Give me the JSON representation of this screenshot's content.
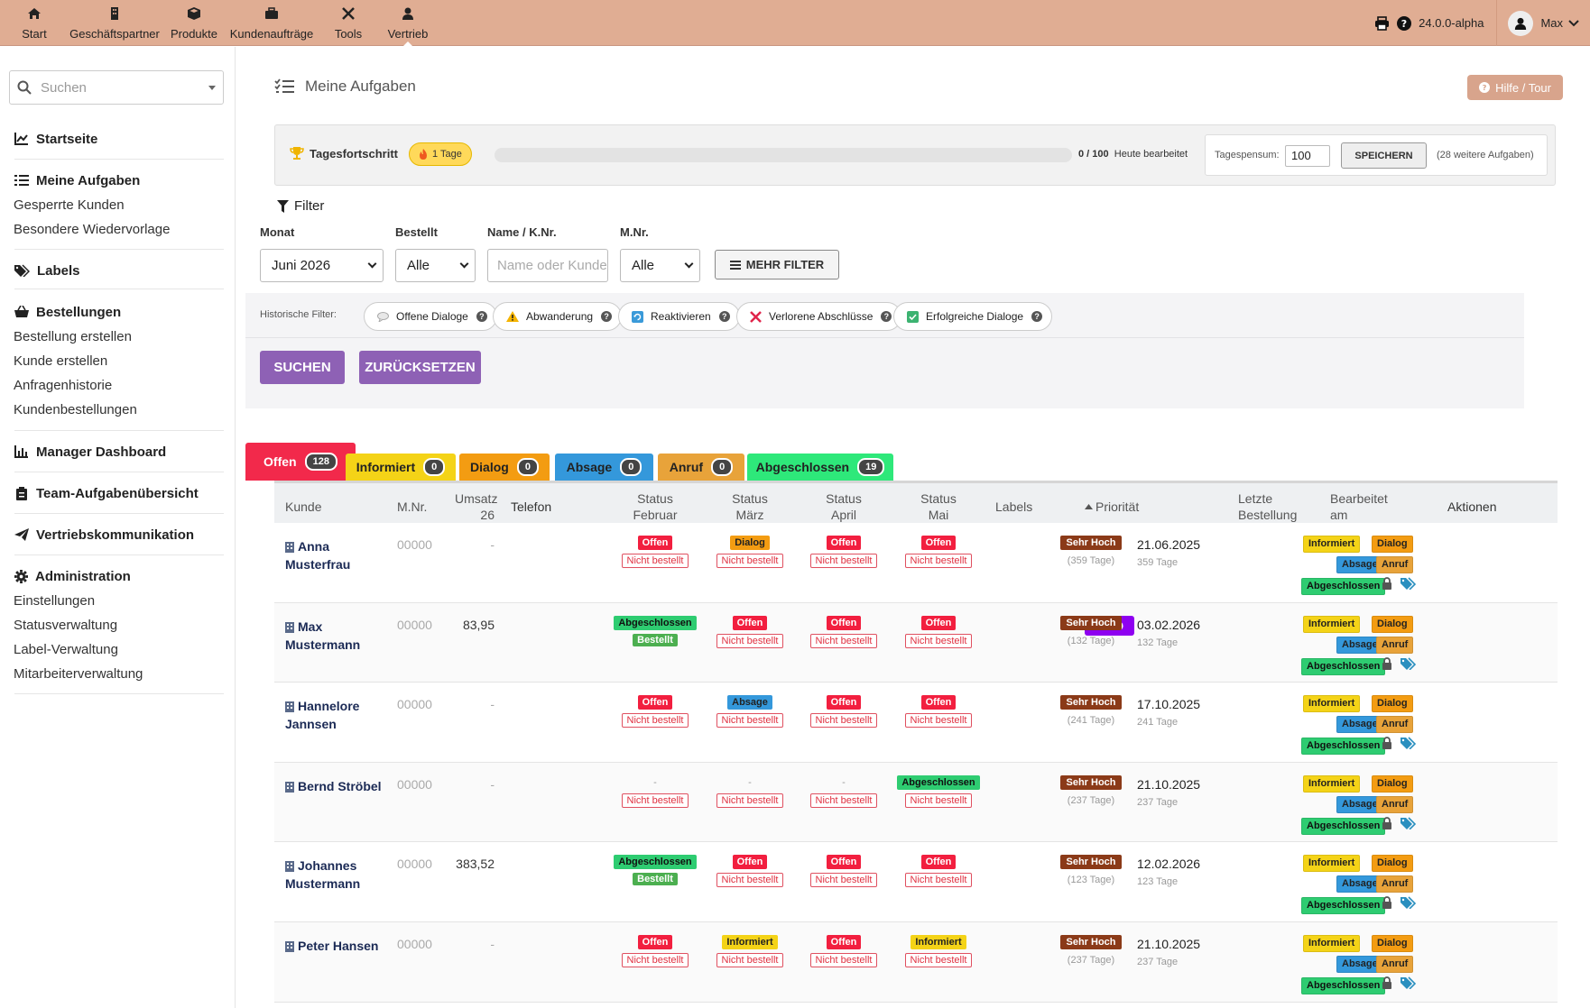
{
  "nav": {
    "items": [
      {
        "label": "Start",
        "icon": "home-icon"
      },
      {
        "label": "Geschäftspartner",
        "icon": "building-icon"
      },
      {
        "label": "Produkte",
        "icon": "cube-icon"
      },
      {
        "label": "Kundenaufträge",
        "icon": "briefcase-icon"
      },
      {
        "label": "Tools",
        "icon": "tools-icon"
      },
      {
        "label": "Vertrieb",
        "icon": "person-icon"
      }
    ],
    "version": "24.0.0-alpha",
    "user": "Max"
  },
  "sidebar": {
    "search_placeholder": "Suchen",
    "startseite": "Startseite",
    "meine_aufgaben": "Meine Aufgaben",
    "gesperrte_kunden": "Gesperrte Kunden",
    "besondere_wiedervorlage": "Besondere Wiedervorlage",
    "labels": "Labels",
    "bestellungen": "Bestellungen",
    "bestellung_erstellen": "Bestellung erstellen",
    "kunde_erstellen": "Kunde erstellen",
    "anfragenhistorie": "Anfragenhistorie",
    "kundenbestellungen": "Kundenbestellungen",
    "manager_dashboard": "Manager Dashboard",
    "team": "Team-Aufgabenübersicht",
    "vertriebskommunikation": "Vertriebskommunikation",
    "administration": "Administration",
    "einstellungen": "Einstellungen",
    "statusverwaltung": "Statusverwaltung",
    "labelverwaltung": "Label-Verwaltung",
    "mitarbeiterverwaltung": "Mitarbeiterverwaltung"
  },
  "page": {
    "title": "Meine Aufgaben",
    "help": "Hilfe / Tour"
  },
  "progress": {
    "title": "Tagesfortschritt",
    "streak": "1 Tage",
    "count": "0 / 100",
    "today": "Heute bearbeitet",
    "value": 0,
    "pensum_label": "Tagespensum:",
    "pensum_value": "100",
    "save": "SPEICHERN",
    "more": "(28 weitere Aufgaben)"
  },
  "filter": {
    "title": "Filter",
    "monat_label": "Monat",
    "monat_value": "Juni 2026",
    "bestellt_label": "Bestellt",
    "bestellt_value": "Alle",
    "name_label": "Name / K.Nr.",
    "name_placeholder": "Name oder Kundennr.",
    "mnr_label": "M.Nr.",
    "mnr_value": "Alle",
    "mehr": "MEHR FILTER",
    "hist_label": "Historische Filter:",
    "hist": [
      "Offene Dialoge",
      "Abwanderung",
      "Reaktivieren",
      "Verlorene Abschlüsse",
      "Erfolgreiche Dialoge"
    ],
    "suchen": "SUCHEN",
    "reset": "ZURÜCKSETZEN"
  },
  "tabs": [
    {
      "label": "Offen",
      "count": "128",
      "color": "#f2294b"
    },
    {
      "label": "Informiert",
      "count": "0",
      "color": "#f4d317"
    },
    {
      "label": "Dialog",
      "count": "0",
      "color": "#f39c12"
    },
    {
      "label": "Absage",
      "count": "0",
      "color": "#3498db"
    },
    {
      "label": "Anruf",
      "count": "0",
      "color": "#e8a33a"
    },
    {
      "label": "Abgeschlossen",
      "count": "19",
      "color": "#2ee87a"
    }
  ],
  "table": {
    "headers": {
      "kunde": "Kunde",
      "mnr": "M.Nr.",
      "umsatz1": "Umsatz",
      "umsatz2": "26",
      "telefon": "Telefon",
      "st": "Status",
      "feb": "Februar",
      "mar": "März",
      "apr": "April",
      "mai": "Mai",
      "labels": "Labels",
      "prio": "Priorität",
      "letzte1": "Letzte",
      "letzte2": "Bestellung",
      "bearb1": "Bearbeitet",
      "bearb2": "am",
      "aktionen": "Aktionen"
    },
    "actions": {
      "informiert": "Informiert",
      "dialog": "Dialog",
      "absage": "Absage",
      "anruf": "Anruf",
      "abgeschlossen": "Abgeschlossen"
    },
    "rows": [
      {
        "name1": "Anna",
        "name2": "Musterfrau",
        "mnr": "00000",
        "umsatz": "-",
        "status": [
          [
            "Offen",
            "Nicht bestellt"
          ],
          [
            "Dialog",
            "Nicht bestellt"
          ],
          [
            "Offen",
            "Nicht bestellt"
          ],
          [
            "Offen",
            "Nicht bestellt"
          ]
        ],
        "label": "",
        "prio": "Sehr Hoch",
        "prio_sub": "(359 Tage)",
        "last": "21.06.2025",
        "last_sub": "359 Tage"
      },
      {
        "name1": "Max",
        "name2": "Mustermann",
        "mnr": "00000",
        "umsatz": "83,95",
        "status": [
          [
            "Abgeschlossen",
            "Bestellt"
          ],
          [
            "Offen",
            "Nicht bestellt"
          ],
          [
            "Offen",
            "Nicht bestellt"
          ],
          [
            "Offen",
            "Nicht bestellt"
          ]
        ],
        "label": "ABO",
        "prio": "Sehr Hoch",
        "prio_sub": "(132 Tage)",
        "last": "03.02.2026",
        "last_sub": "132 Tage"
      },
      {
        "name1": "Hannelore",
        "name2": "Jannsen",
        "mnr": "00000",
        "umsatz": "-",
        "status": [
          [
            "Offen",
            "Nicht bestellt"
          ],
          [
            "Absage",
            "Nicht bestellt"
          ],
          [
            "Offen",
            "Nicht bestellt"
          ],
          [
            "Offen",
            "Nicht bestellt"
          ]
        ],
        "label": "",
        "prio": "Sehr Hoch",
        "prio_sub": "(241 Tage)",
        "last": "17.10.2025",
        "last_sub": "241 Tage"
      },
      {
        "name1": "Bernd Ströbel",
        "name2": "",
        "mnr": "00000",
        "umsatz": "-",
        "status": [
          [
            "-",
            "Nicht bestellt"
          ],
          [
            "-",
            "Nicht bestellt"
          ],
          [
            "-",
            "Nicht bestellt"
          ],
          [
            "Abgeschlossen",
            "Nicht bestellt"
          ]
        ],
        "label": "",
        "prio": "Sehr Hoch",
        "prio_sub": "(237 Tage)",
        "last": "21.10.2025",
        "last_sub": "237 Tage"
      },
      {
        "name1": "Johannes",
        "name2": "Mustermann",
        "mnr": "00000",
        "umsatz": "383,52",
        "status": [
          [
            "Abgeschlossen",
            "Bestellt"
          ],
          [
            "Offen",
            "Nicht bestellt"
          ],
          [
            "Offen",
            "Nicht bestellt"
          ],
          [
            "Offen",
            "Nicht bestellt"
          ]
        ],
        "label": "",
        "prio": "Sehr Hoch",
        "prio_sub": "(123 Tage)",
        "last": "12.02.2026",
        "last_sub": "123 Tage"
      },
      {
        "name1": "Peter Hansen",
        "name2": "",
        "mnr": "00000",
        "umsatz": "-",
        "status": [
          [
            "Offen",
            "Nicht bestellt"
          ],
          [
            "Informiert",
            "Nicht bestellt"
          ],
          [
            "Offen",
            "Nicht bestellt"
          ],
          [
            "Informiert",
            "Nicht bestellt"
          ]
        ],
        "label": "",
        "prio": "Sehr Hoch",
        "prio_sub": "(237 Tage)",
        "last": "21.10.2025",
        "last_sub": "237 Tage"
      }
    ]
  }
}
